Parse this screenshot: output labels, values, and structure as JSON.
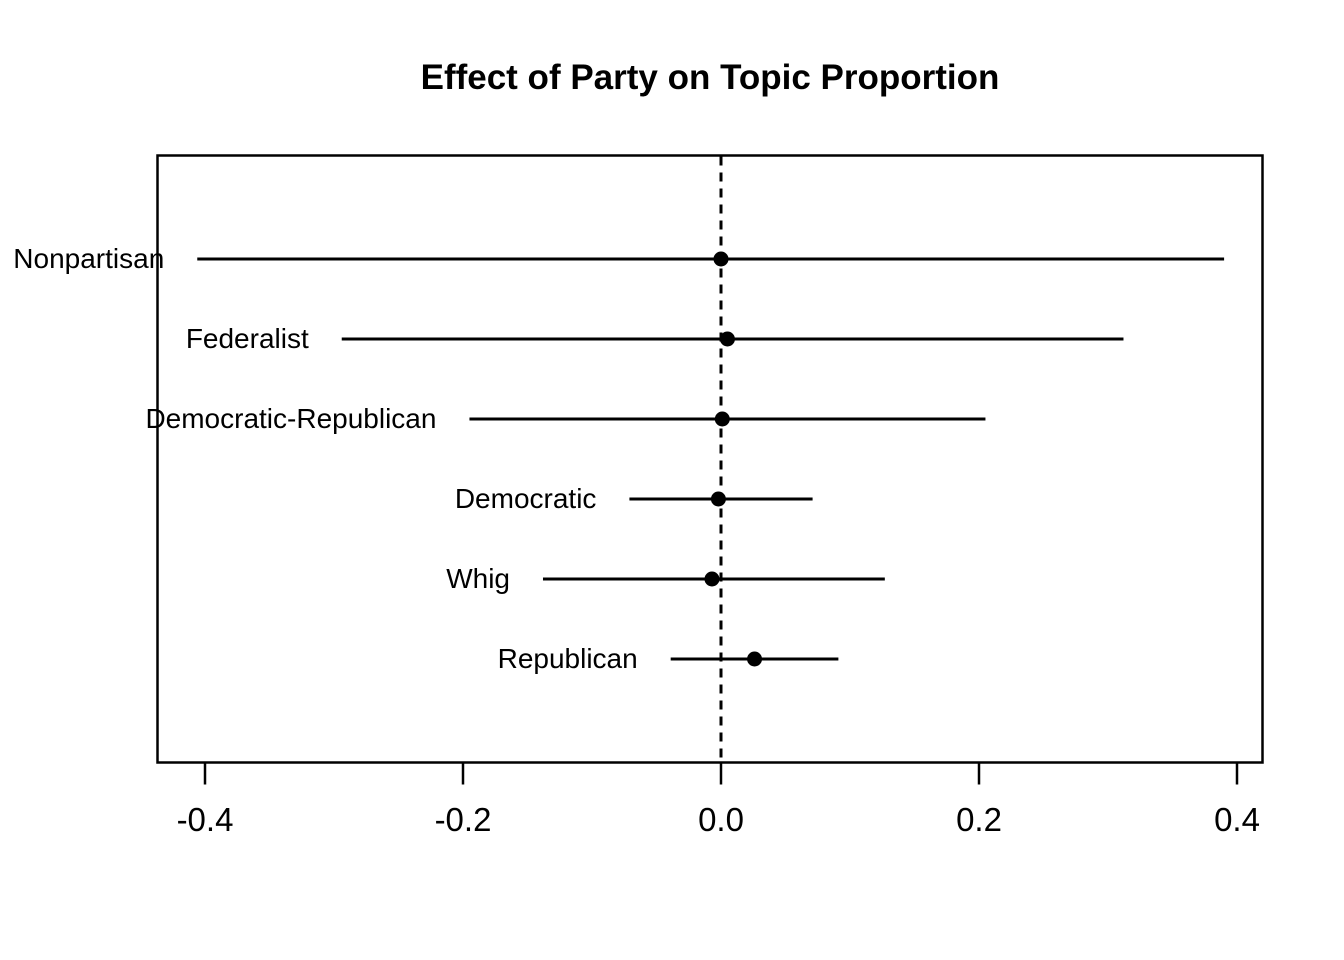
{
  "chart_data": {
    "type": "dot-whisker",
    "title": "Effect of Party on Topic Proportion",
    "xlabel": "",
    "ylabel": "",
    "xlim": [
      -0.437,
      0.42
    ],
    "x_ticks": {
      "values": [
        -0.4,
        -0.2,
        0.0,
        0.2,
        0.4
      ],
      "labels": [
        "-0.4",
        "-0.2",
        "0.0",
        "0.2",
        "0.4"
      ]
    },
    "reference_line": {
      "value": 0.0,
      "style": "dashed"
    },
    "grid": false,
    "legend": false,
    "points": [
      {
        "category": "Nonpartisan",
        "estimate": 0.0,
        "ci_low": -0.406,
        "ci_high": 0.39
      },
      {
        "category": "Federalist",
        "estimate": 0.005,
        "ci_low": -0.294,
        "ci_high": 0.312
      },
      {
        "category": "Democratic-Republican",
        "estimate": 0.001,
        "ci_low": -0.195,
        "ci_high": 0.205
      },
      {
        "category": "Democratic",
        "estimate": -0.002,
        "ci_low": -0.071,
        "ci_high": 0.071
      },
      {
        "category": "Whig",
        "estimate": -0.007,
        "ci_low": -0.138,
        "ci_high": 0.127
      },
      {
        "category": "Republican",
        "estimate": 0.026,
        "ci_low": -0.039,
        "ci_high": 0.091
      }
    ],
    "colors": {
      "foreground": "#000000",
      "background": "#ffffff"
    }
  }
}
